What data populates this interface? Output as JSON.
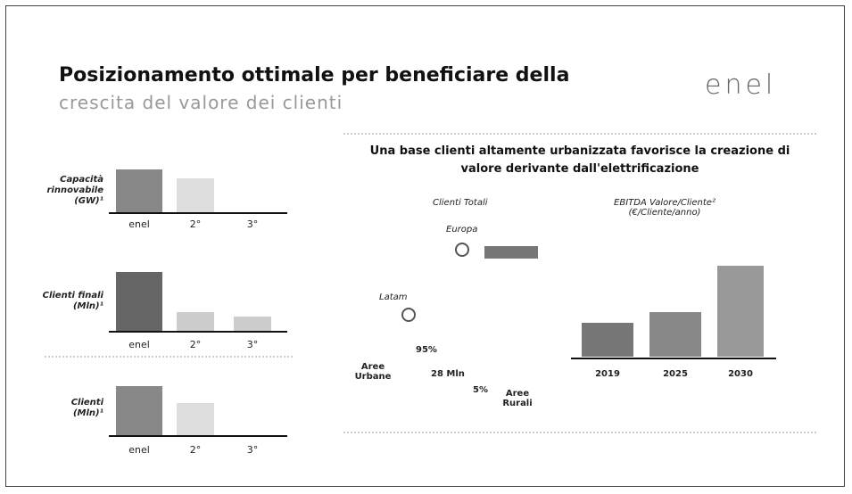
{
  "header": {
    "title": "Posizionamento ottimale per beneficiare della",
    "subtitle": "crescita del valore dei clienti",
    "logo": "enel"
  },
  "left_panels": [
    {
      "label": "Capacità rinnovabile (GW)¹",
      "x_labels": [
        "enel",
        "2°",
        "3°"
      ]
    },
    {
      "label": "Clienti finali (Mln)¹",
      "x_labels": [
        "enel",
        "2°",
        "3°"
      ]
    },
    {
      "label": "Clienti (Mln)¹",
      "x_labels": [
        "enel",
        "2°",
        "3°"
      ]
    }
  ],
  "right_panel": {
    "heading": "Una base clienti altamente urbanizzata favorisce la creazione di valore derivante dall'elettrificazione",
    "left_title": "Clienti Totali",
    "right_title": "EBITDA Valore/Cliente² (€/Cliente/anno)",
    "regions": [
      "Europa",
      "Latam"
    ],
    "urban_share": "95%",
    "urban_label": "Aree Urbane",
    "total": "28 Mln",
    "rural_share": "5%",
    "rural_label": "Aree Rurali",
    "years": [
      "2019",
      "2025",
      "2030"
    ]
  }
}
